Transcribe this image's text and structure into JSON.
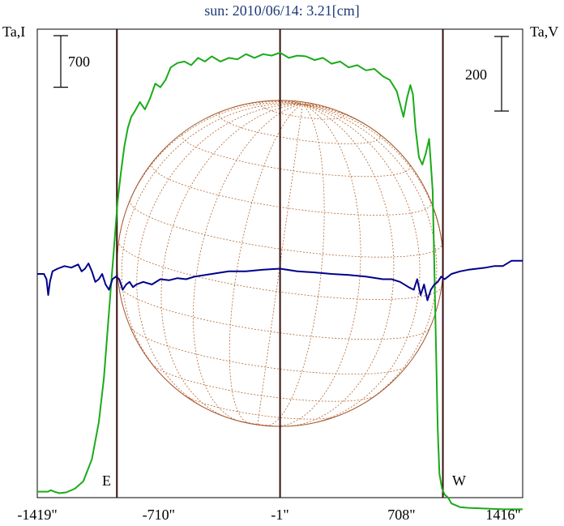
{
  "chart_data": {
    "type": "line",
    "title": "sun: 2010/06/14: 3.21[cm]",
    "left_axis_label": "Ta,I",
    "right_axis_label": "Ta,V",
    "x_ticks": [
      "-1419\"",
      "-710\"",
      "-1\"",
      "708\"",
      "1416\""
    ],
    "x_tick_values": [
      -1419,
      -710,
      -1,
      708,
      1416
    ],
    "xlim": [
      -1419,
      1416
    ],
    "scale_bars": {
      "left": {
        "label": "700",
        "value": 700
      },
      "right": {
        "label": "200",
        "value": 200
      }
    },
    "limb_markers": {
      "east": {
        "label": "E",
        "x": -954
      },
      "center": {
        "x": -1
      },
      "west": {
        "label": "W",
        "x": 950
      }
    },
    "globe": {
      "radius_arcsec": 952
    },
    "series": [
      {
        "key": "I",
        "color": "#1aab1a",
        "axis": "left",
        "x": [
          -1419,
          -1355,
          -1340,
          -1320,
          -1290,
          -1250,
          -1200,
          -1150,
          -1100,
          -1060,
          -1030,
          -1010,
          -990,
          -970,
          -950,
          -930,
          -910,
          -890,
          -870,
          -850,
          -820,
          -790,
          -760,
          -730,
          -700,
          -670,
          -640,
          -600,
          -560,
          -520,
          -480,
          -440,
          -400,
          -350,
          -300,
          -250,
          -200,
          -150,
          -100,
          -50,
          -1,
          50,
          100,
          150,
          200,
          250,
          300,
          350,
          400,
          450,
          500,
          550,
          600,
          640,
          680,
          720,
          740,
          760,
          775,
          790,
          810,
          830,
          850,
          870,
          890,
          900,
          910,
          920,
          930,
          945,
          960,
          980,
          1000,
          1050,
          1100,
          1200,
          1300,
          1416
        ],
        "y": [
          -40,
          -40,
          -20,
          -40,
          -60,
          -50,
          0,
          100,
          400,
          900,
          1500,
          2100,
          2700,
          3300,
          3900,
          4300,
          4650,
          4900,
          5050,
          5120,
          5250,
          5150,
          5300,
          5500,
          5450,
          5550,
          5720,
          5780,
          5800,
          5750,
          5850,
          5800,
          5870,
          5800,
          5850,
          5830,
          5900,
          5850,
          5900,
          5880,
          5920,
          5850,
          5880,
          5870,
          5820,
          5850,
          5770,
          5800,
          5720,
          5750,
          5680,
          5700,
          5600,
          5550,
          5400,
          5050,
          5300,
          5480,
          5350,
          4900,
          4500,
          4400,
          4550,
          4750,
          4050,
          3000,
          1900,
          800,
          200,
          0,
          -80,
          -120,
          -200,
          -250,
          -260,
          -270,
          -280,
          -280
        ]
      },
      {
        "key": "V",
        "color": "#00008b",
        "axis": "right",
        "x": [
          -1419,
          -1380,
          -1365,
          -1355,
          -1345,
          -1330,
          -1300,
          -1260,
          -1220,
          -1180,
          -1160,
          -1140,
          -1120,
          -1100,
          -1080,
          -1060,
          -1040,
          -1020,
          -1000,
          -980,
          -960,
          -940,
          -920,
          -900,
          -880,
          -860,
          -840,
          -800,
          -750,
          -700,
          -650,
          -600,
          -550,
          -500,
          -400,
          -300,
          -200,
          -100,
          -1,
          100,
          200,
          300,
          400,
          500,
          600,
          650,
          700,
          750,
          780,
          800,
          820,
          840,
          860,
          880,
          900,
          920,
          940,
          960,
          980,
          1000,
          1050,
          1100,
          1150,
          1200,
          1250,
          1300,
          1350,
          1416
        ],
        "y": [
          0,
          0,
          -10,
          -40,
          -15,
          5,
          10,
          15,
          12,
          18,
          5,
          10,
          20,
          5,
          -15,
          -10,
          0,
          -20,
          -30,
          -10,
          -5,
          -10,
          -30,
          -20,
          -15,
          -25,
          -20,
          -15,
          -20,
          -10,
          -12,
          -8,
          -10,
          -5,
          0,
          5,
          5,
          8,
          10,
          5,
          3,
          0,
          -2,
          -5,
          -10,
          -10,
          -15,
          -25,
          -30,
          -10,
          -40,
          -20,
          -50,
          -30,
          -20,
          -15,
          -5,
          -10,
          -5,
          0,
          5,
          8,
          10,
          12,
          15,
          15,
          25,
          25
        ]
      }
    ]
  }
}
